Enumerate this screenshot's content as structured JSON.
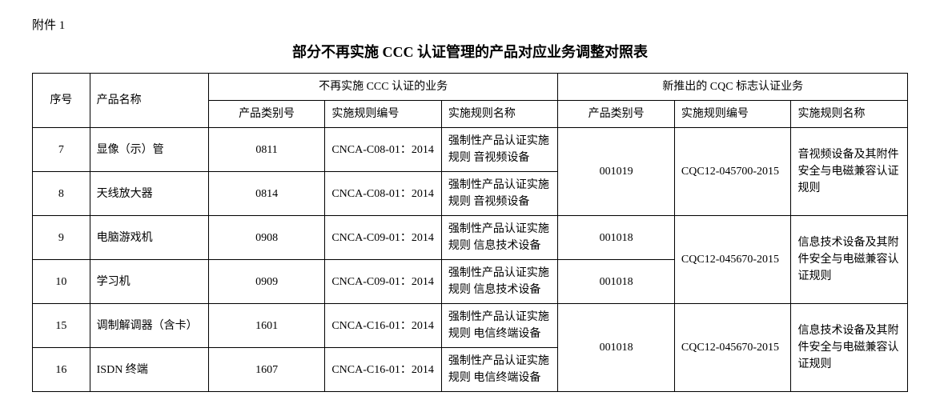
{
  "attachment_label": "附件 1",
  "title": "部分不再实施 CCC 认证管理的产品对应业务调整对照表",
  "headers": {
    "seq": "序号",
    "product_name": "产品名称",
    "ccc_group": "不再实施 CCC 认证的业务",
    "cqc_group": "新推出的 CQC 标志认证业务",
    "category_no": "产品类别号",
    "rule_code": "实施规则编号",
    "rule_name": "实施规则名称"
  },
  "groups": [
    {
      "cqc_category": "001019",
      "cqc_code": "CQC12-045700-2015",
      "cqc_rule": "音视频设备及其附件安全与电磁兼容认证规则",
      "cqc_cat_rowspan": 2,
      "cqc_code_rowspan": 2,
      "cqc_rule_rowspan": 2,
      "rows": [
        {
          "seq": "7",
          "name": "显像（示）管",
          "cat": "0811",
          "code": "CNCA-C08-01：2014",
          "rule": "强制性产品认证实施规则 音视频设备"
        },
        {
          "seq": "8",
          "name": "天线放大器",
          "cat": "0814",
          "code": "CNCA-C08-01：2014",
          "rule": "强制性产品认证实施规则 音视频设备"
        }
      ]
    },
    {
      "cqc_category_rows": [
        "001018",
        "001018"
      ],
      "cqc_code": "CQC12-045670-2015",
      "cqc_rule": "信息技术设备及其附件安全与电磁兼容认证规则",
      "cqc_code_rowspan": 2,
      "cqc_rule_rowspan": 2,
      "rows": [
        {
          "seq": "9",
          "name": "电脑游戏机",
          "cat": "0908",
          "code": "CNCA-C09-01：2014",
          "rule": "强制性产品认证实施规则 信息技术设备"
        },
        {
          "seq": "10",
          "name": "学习机",
          "cat": "0909",
          "code": "CNCA-C09-01：2014",
          "rule": "强制性产品认证实施规则 信息技术设备"
        }
      ]
    },
    {
      "cqc_category": "001018",
      "cqc_code": "CQC12-045670-2015",
      "cqc_rule": "信息技术设备及其附件安全与电磁兼容认证规则",
      "cqc_cat_rowspan": 2,
      "cqc_code_rowspan": 2,
      "cqc_rule_rowspan": 2,
      "rows": [
        {
          "seq": "15",
          "name": "调制解调器（含卡）",
          "cat": "1601",
          "code": "CNCA-C16-01：2014",
          "rule": "强制性产品认证实施规则 电信终端设备"
        },
        {
          "seq": "16",
          "name": "ISDN 终端",
          "cat": "1607",
          "code": "CNCA-C16-01：2014",
          "rule": "强制性产品认证实施规则 电信终端设备"
        }
      ]
    }
  ]
}
